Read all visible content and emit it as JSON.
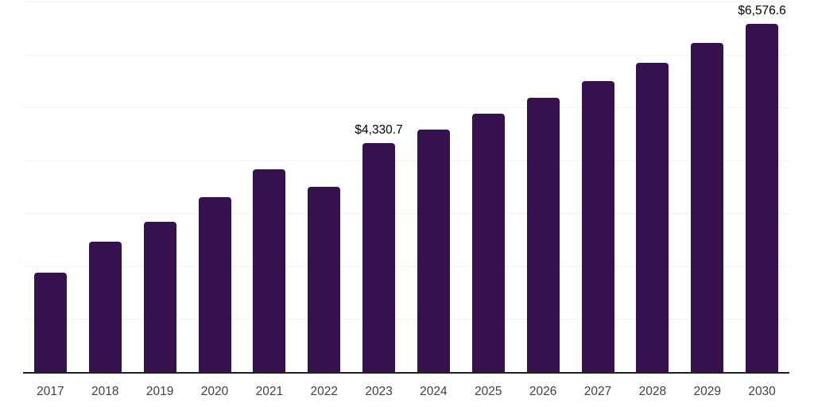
{
  "chart_data": {
    "type": "bar",
    "title": "",
    "xlabel": "",
    "ylabel": "",
    "categories": [
      "2017",
      "2018",
      "2019",
      "2020",
      "2021",
      "2022",
      "2023",
      "2024",
      "2025",
      "2026",
      "2027",
      "2028",
      "2029",
      "2030"
    ],
    "values": [
      1880,
      2465,
      2840,
      3305,
      3825,
      3500,
      4330.7,
      4580,
      4880,
      5180,
      5495,
      5840,
      6215,
      6576.6
    ],
    "labeled_points": [
      {
        "category": "2023",
        "label": "$4,330.7"
      },
      {
        "category": "2030",
        "label": "$6,576.6"
      }
    ],
    "ylim": [
      0,
      7000
    ],
    "gridline_step": 1000,
    "grid": true,
    "legend": "none",
    "y_tick_labels_visible": false,
    "colors": {
      "bar": "#35124E",
      "background": "#ffffff",
      "gridline": "#f2f2f2",
      "axis_line": "#1f1f1f",
      "x_axis_label": "#404040",
      "value_label": "#000000"
    }
  }
}
